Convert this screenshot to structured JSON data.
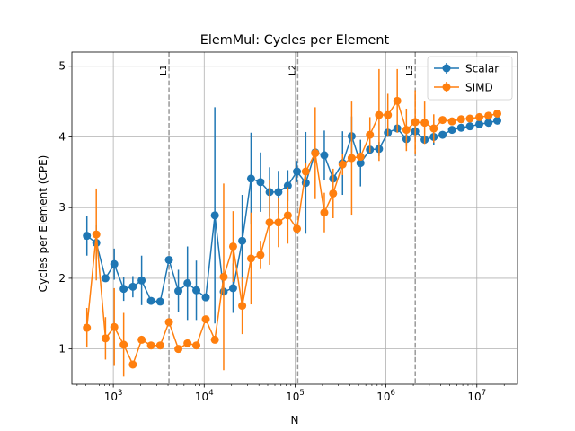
{
  "chart_data": {
    "type": "line",
    "title": "ElemMul: Cycles per Element",
    "xlabel": "N",
    "ylabel": "Cycles per Element (CPE)",
    "xscale": "log",
    "xlim": [
      350,
      28000000
    ],
    "ylim": [
      0.5,
      5.2
    ],
    "x_tick_exponents": [
      3,
      4,
      5,
      6,
      7
    ],
    "y_ticks": [
      "1",
      "2",
      "3",
      "4",
      "5"
    ],
    "grid": true,
    "legend_position": "top-right",
    "vlines": [
      {
        "label": "L1",
        "x": 4096,
        "color": "#999999"
      },
      {
        "label": "L2",
        "x": 107000,
        "color": "#999999"
      },
      {
        "label": "L3",
        "x": 2100000,
        "color": "#999999"
      }
    ],
    "x": [
      512,
      650,
      820,
      1024,
      1300,
      1640,
      2048,
      2600,
      3280,
      4096,
      5200,
      6550,
      8192,
      10400,
      13100,
      16384,
      20800,
      26200,
      32768,
      41600,
      52400,
      65536,
      83200,
      104900,
      131072,
      166400,
      209700,
      262144,
      332800,
      419400,
      524288,
      665600,
      838900,
      1048576,
      1331200,
      1677700,
      2097152,
      2662400,
      3355400,
      4194304,
      5324800,
      6710900,
      8388608,
      10649600,
      13421800,
      16777216
    ],
    "series": [
      {
        "name": "Scalar",
        "color": "#1f77b4",
        "values": [
          2.6,
          2.5,
          2.0,
          2.2,
          1.85,
          1.88,
          1.97,
          1.68,
          1.67,
          2.26,
          1.82,
          1.93,
          1.83,
          1.73,
          2.89,
          1.81,
          1.86,
          2.53,
          3.41,
          3.36,
          3.22,
          3.22,
          3.31,
          3.51,
          3.35,
          3.78,
          3.74,
          3.41,
          3.63,
          4.01,
          3.63,
          3.82,
          3.83,
          4.06,
          4.12,
          3.97,
          4.08,
          3.96,
          4.0,
          4.03,
          4.1,
          4.13,
          4.15,
          4.18,
          4.2,
          4.23
        ],
        "errors": [
          0.28,
          0.25,
          0.0,
          0.22,
          0.17,
          0.15,
          0.35,
          0.0,
          0.0,
          0.0,
          0.3,
          0.52,
          0.42,
          0.0,
          1.53,
          0.0,
          0.35,
          0.65,
          0.65,
          0.42,
          0.35,
          0.3,
          0.22,
          0.15,
          0.72,
          0.0,
          0.35,
          0.0,
          0.45,
          0.28,
          0.33,
          0.0,
          0.1,
          0.0,
          0.0,
          0.1,
          0.12,
          0.0,
          0.12,
          0.0,
          0.0,
          0.0,
          0.0,
          0.0,
          0.0,
          0.0
        ]
      },
      {
        "name": "SIMD",
        "color": "#ff7f0e",
        "values": [
          1.3,
          2.62,
          1.15,
          1.31,
          1.06,
          0.78,
          1.13,
          1.05,
          1.05,
          1.38,
          1.0,
          1.08,
          1.05,
          1.42,
          1.13,
          2.02,
          2.45,
          1.61,
          2.28,
          2.33,
          2.79,
          2.79,
          2.89,
          2.7,
          3.51,
          3.77,
          2.93,
          3.2,
          3.61,
          3.7,
          3.72,
          4.03,
          4.31,
          4.31,
          4.51,
          4.1,
          4.21,
          4.2,
          4.12,
          4.24,
          4.22,
          4.25,
          4.26,
          4.28,
          4.3,
          4.33
        ],
        "errors": [
          0.28,
          0.65,
          0.3,
          0.55,
          0.45,
          0.0,
          0.0,
          0.0,
          0.0,
          0.0,
          0.0,
          0.0,
          0.0,
          0.0,
          0.0,
          1.32,
          0.5,
          0.4,
          0.65,
          0.2,
          0.6,
          0.35,
          0.4,
          0.0,
          0.12,
          0.65,
          0.28,
          0.35,
          0.15,
          0.8,
          0.0,
          0.25,
          0.65,
          0.3,
          0.45,
          0.3,
          0.45,
          0.3,
          0.2,
          0.0,
          0.0,
          0.0,
          0.0,
          0.0,
          0.0,
          0.0
        ]
      }
    ]
  }
}
